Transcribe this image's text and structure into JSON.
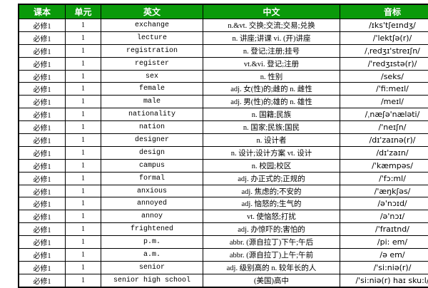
{
  "colors": {
    "header_background": "#0a9a0a",
    "header_text": "#ffffff",
    "border": "#000000",
    "cell_text": "#000000",
    "cell_background": "#ffffff"
  },
  "table": {
    "columns": [
      {
        "key": "textbook",
        "label": "课本"
      },
      {
        "key": "unit",
        "label": "单元"
      },
      {
        "key": "english",
        "label": "英文"
      },
      {
        "key": "chinese",
        "label": "中文"
      },
      {
        "key": "phonetic",
        "label": "音标"
      }
    ],
    "rows": [
      {
        "textbook": "必修1",
        "unit": "1",
        "english": "exchange",
        "chinese": "n.&vt. 交换;交流;交易;兑换",
        "phonetic": "/ɪks'tʃeɪndʒ/"
      },
      {
        "textbook": "必修1",
        "unit": "1",
        "english": "lecture",
        "chinese": "n. 讲座;讲课 vi. (开)讲座",
        "phonetic": "/'lektʃə(r)/"
      },
      {
        "textbook": "必修1",
        "unit": "1",
        "english": "registration",
        "chinese": "n. 登记;注册;挂号",
        "phonetic": "/ˌredʒɪ'streɪʃn/"
      },
      {
        "textbook": "必修1",
        "unit": "1",
        "english": "register",
        "chinese": "vt.&vi. 登记;注册",
        "phonetic": "/'redʒɪstə(r)/"
      },
      {
        "textbook": "必修1",
        "unit": "1",
        "english": "sex",
        "chinese": "n. 性别",
        "phonetic": "/seks/"
      },
      {
        "textbook": "必修1",
        "unit": "1",
        "english": "female",
        "chinese": "adj. 女(性)的;雌的 n. 雌性",
        "phonetic": "/'fi:meɪl/"
      },
      {
        "textbook": "必修1",
        "unit": "1",
        "english": "male",
        "chinese": "adj. 男(性)的;雄的 n. 雄性",
        "phonetic": "/meɪl/"
      },
      {
        "textbook": "必修1",
        "unit": "1",
        "english": "nationality",
        "chinese": "n. 国籍;民族",
        "phonetic": "/ˌnæʃə'næləti/"
      },
      {
        "textbook": "必修1",
        "unit": "1",
        "english": "nation",
        "chinese": "n. 国家;民族;国民",
        "phonetic": "/'neɪʃn/"
      },
      {
        "textbook": "必修1",
        "unit": "1",
        "english": "designer",
        "chinese": "n. 设计者",
        "phonetic": "/dɪ'zaɪnə(r)/"
      },
      {
        "textbook": "必修1",
        "unit": "1",
        "english": "design",
        "chinese": "n. 设计;设计方案 vt. 设计",
        "phonetic": "/dɪ'zaɪn/"
      },
      {
        "textbook": "必修1",
        "unit": "1",
        "english": "campus",
        "chinese": "n. 校园;校区",
        "phonetic": "/'kæmpəs/"
      },
      {
        "textbook": "必修1",
        "unit": "1",
        "english": "formal",
        "chinese": "adj. 办正式的;正规的",
        "phonetic": "/'fɔ:ml/"
      },
      {
        "textbook": "必修1",
        "unit": "1",
        "english": "anxious",
        "chinese": "adj. 焦虑的;不安的",
        "phonetic": "/'æŋkʃəs/"
      },
      {
        "textbook": "必修1",
        "unit": "1",
        "english": "annoyed",
        "chinese": "adj. 恼怒的;生气的",
        "phonetic": "/ə'nɔɪd/"
      },
      {
        "textbook": "必修1",
        "unit": "1",
        "english": "annoy",
        "chinese": "vt. 使恼怒;打扰",
        "phonetic": "/ə'nɔɪ/"
      },
      {
        "textbook": "必修1",
        "unit": "1",
        "english": "frightened",
        "chinese": "adj. 办惊吓的;害怕的",
        "phonetic": "/'fraɪtnd/"
      },
      {
        "textbook": "必修1",
        "unit": "1",
        "english": "p.m.",
        "chinese": "abbr. (源自拉丁)下午;午后",
        "phonetic": "/pi: em/"
      },
      {
        "textbook": "必修1",
        "unit": "1",
        "english": "a.m.",
        "chinese": "abbr. (源自拉丁)上午;午前",
        "phonetic": "/ə em/"
      },
      {
        "textbook": "必修1",
        "unit": "1",
        "english": "senior",
        "chinese": "adj. 级别高的 n. 较年长的人",
        "phonetic": "/'si:niə(r)/"
      },
      {
        "textbook": "必修1",
        "unit": "1",
        "english": "senior high school",
        "chinese": "(美国)高中",
        "phonetic": "/'si:niə(r) haɪ sku:l/"
      }
    ]
  }
}
